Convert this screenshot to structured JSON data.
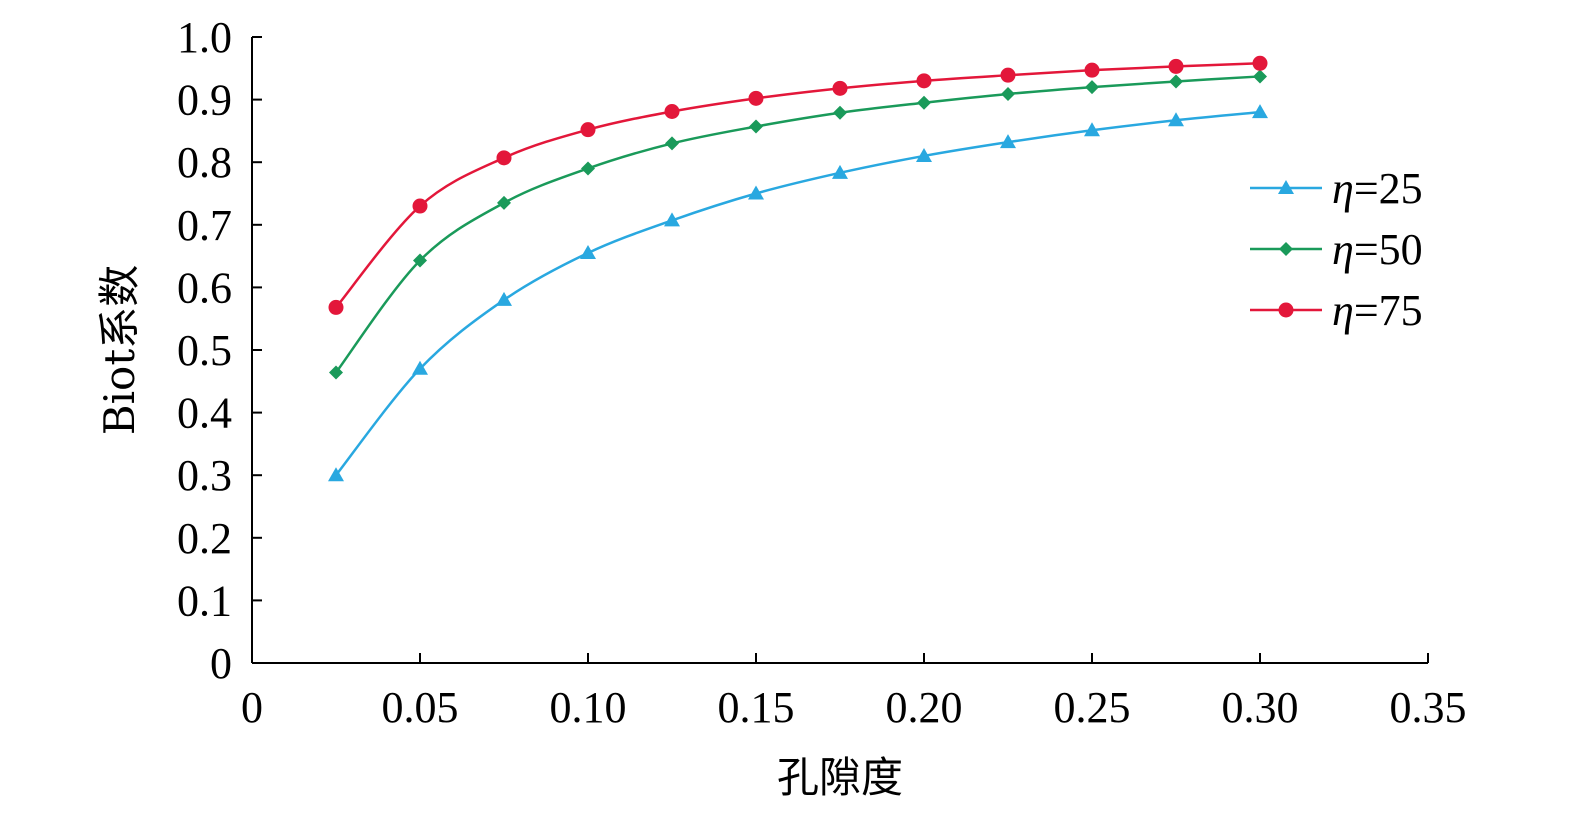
{
  "chart_data": {
    "type": "line",
    "xlabel": "孔隙度",
    "ylabel": "Biot系数",
    "xlim": [
      0,
      0.35
    ],
    "ylim": [
      0,
      1.0
    ],
    "x_ticks": [
      "0",
      "0.05",
      "0.10",
      "0.15",
      "0.20",
      "0.25",
      "0.30",
      "0.35"
    ],
    "y_ticks": [
      "0",
      "0.1",
      "0.2",
      "0.3",
      "0.4",
      "0.5",
      "0.6",
      "0.7",
      "0.8",
      "0.9",
      "1.0"
    ],
    "grid": false,
    "legend_position": "right",
    "x": [
      0.025,
      0.05,
      0.075,
      0.1,
      0.125,
      0.15,
      0.175,
      0.2,
      0.225,
      0.25,
      0.275,
      0.3
    ],
    "series": [
      {
        "name": "η=25",
        "legend_symbol": "η",
        "legend_value": "=25",
        "color": "#29a8e0",
        "marker": "triangle",
        "values": [
          0.3,
          0.47,
          0.58,
          0.655,
          0.707,
          0.75,
          0.783,
          0.81,
          0.832,
          0.851,
          0.867,
          0.88
        ]
      },
      {
        "name": "η=50",
        "legend_symbol": "η",
        "legend_value": "=50",
        "color": "#1a9a5a",
        "marker": "diamond",
        "values": [
          0.464,
          0.643,
          0.735,
          0.79,
          0.83,
          0.857,
          0.879,
          0.895,
          0.909,
          0.92,
          0.929,
          0.937
        ]
      },
      {
        "name": "η=75",
        "legend_symbol": "η",
        "legend_value": "=75",
        "color": "#e3173a",
        "marker": "circle",
        "values": [
          0.568,
          0.73,
          0.807,
          0.852,
          0.881,
          0.902,
          0.918,
          0.93,
          0.939,
          0.947,
          0.953,
          0.958
        ]
      }
    ]
  }
}
